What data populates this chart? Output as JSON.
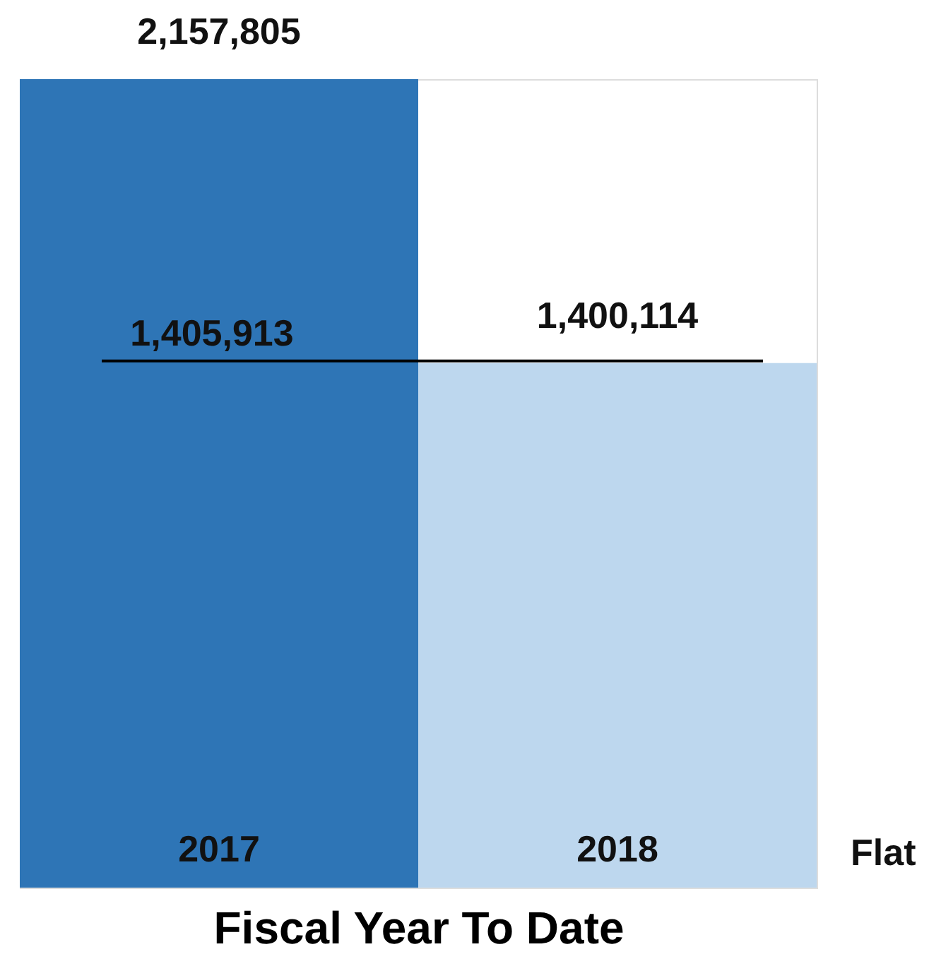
{
  "chart_data": {
    "type": "bar",
    "xlabel": "Fiscal Year To Date",
    "categories": [
      "2017",
      "2018"
    ],
    "values": [
      2157805,
      1400114
    ],
    "colors": [
      "#2e75b6",
      "#bdd7ee"
    ],
    "value_labels": [
      "2,157,805",
      "1,400,114"
    ],
    "ref_lines": [
      {
        "axis": "y",
        "value": 1405913,
        "label": "1,405,913",
        "color": "#000000"
      }
    ],
    "annotations": [
      "Flat"
    ],
    "tick_labels": "x"
  }
}
